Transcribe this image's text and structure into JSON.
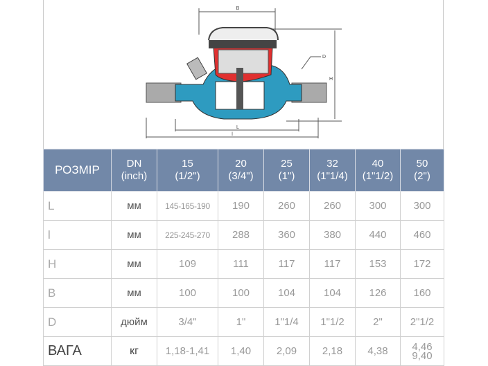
{
  "drawing": {
    "labels": {
      "B": "B",
      "D": "D",
      "H": "H",
      "L": "L",
      "l": "l"
    }
  },
  "table": {
    "header": {
      "param": "РОЗМІР",
      "dn": [
        "DN",
        "(inch)"
      ],
      "sizes": [
        [
          "15",
          "(1/2\")"
        ],
        [
          "20",
          "(3/4\")"
        ],
        [
          "25",
          "(1\")"
        ],
        [
          "32",
          "(1\"1/4)"
        ],
        [
          "40",
          "(1\"1/2)"
        ],
        [
          "50",
          "(2\")"
        ]
      ]
    },
    "rows": [
      {
        "param": "L",
        "unit": "мм",
        "values": [
          "145-165-190",
          "190",
          "260",
          "260",
          "300",
          "300"
        ]
      },
      {
        "param": "l",
        "unit": "мм",
        "values": [
          "225-245-270",
          "288",
          "360",
          "380",
          "440",
          "460"
        ]
      },
      {
        "param": "H",
        "unit": "мм",
        "values": [
          "109",
          "111",
          "117",
          "117",
          "153",
          "172"
        ]
      },
      {
        "param": "B",
        "unit": "мм",
        "values": [
          "100",
          "100",
          "104",
          "104",
          "126",
          "160"
        ]
      },
      {
        "param": "D",
        "unit": "дюйм",
        "values": [
          "3/4\"",
          "1\"",
          "1\"1/4",
          "1\"1/2",
          "2\"",
          "2\"1/2"
        ]
      },
      {
        "param": "ВАГА",
        "unit": "кг",
        "values": [
          "1,18-1,41",
          "1,40",
          "2,09",
          "2,18",
          "4,38",
          [
            "4,46",
            "9,40"
          ]
        ]
      }
    ]
  },
  "colors": {
    "header_bg": "#7288a8",
    "body_blue": "#2e9bc0",
    "mechanism_red": "#e03030"
  }
}
